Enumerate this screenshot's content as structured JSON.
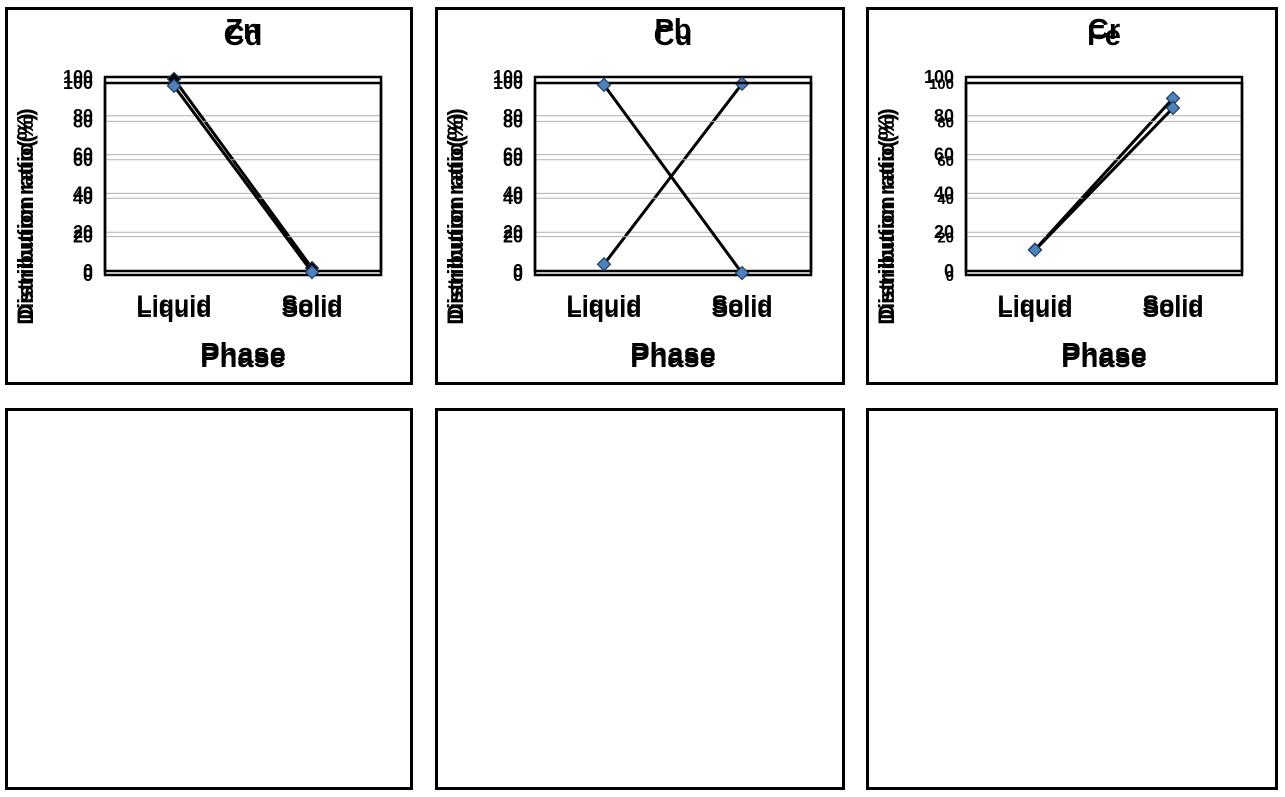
{
  "chart_data": [
    {
      "type": "line",
      "title": "Zn",
      "xlabel": "Phase",
      "ylabel": "Distribution ratio(%)",
      "categories": [
        "Liquid",
        "Solid"
      ],
      "values": [
        99,
        1.5
      ],
      "ylim": [
        0,
        100
      ],
      "yticks": [
        0,
        20,
        40,
        60,
        80,
        100
      ],
      "grid": true,
      "marker_color": "#000000"
    },
    {
      "type": "line",
      "title": "Pb",
      "xlabel": "Phase",
      "ylabel": "Distribution ratio(%)",
      "categories": [
        "Liquid",
        "Solid"
      ],
      "values": [
        3.5,
        96.5
      ],
      "ylim": [
        0,
        100
      ],
      "yticks": [
        0,
        20,
        40,
        60,
        80,
        100
      ],
      "grid": true,
      "marker_color": "#4f81bd"
    },
    {
      "type": "line",
      "title": "Cr",
      "xlabel": "Phase",
      "ylabel": "Distribution ratio(%)",
      "categories": [
        "Liquid",
        "Solid"
      ],
      "values": [
        11,
        89
      ],
      "ylim": [
        0,
        100
      ],
      "yticks": [
        0,
        20,
        40,
        60,
        80,
        100
      ],
      "grid": true,
      "marker_color": "#4f81bd"
    },
    {
      "type": "line",
      "title": "Cd",
      "xlabel": "Phase",
      "ylabel": "Distribution ratio(%)",
      "categories": [
        "Liquid",
        "Solid"
      ],
      "values": [
        98.5,
        1.5
      ],
      "ylim": [
        0,
        100
      ],
      "yticks": [
        0,
        20,
        40,
        60,
        80,
        100
      ],
      "grid": true,
      "marker_color": "#4f81bd"
    },
    {
      "type": "line",
      "title": "Cu",
      "xlabel": "Phase",
      "ylabel": "Distribution ratio(%)",
      "categories": [
        "Liquid",
        "Solid"
      ],
      "values": [
        99,
        1
      ],
      "ylim": [
        0,
        100
      ],
      "yticks": [
        0,
        20,
        40,
        60,
        80,
        100
      ],
      "grid": true,
      "marker_color": "#4f81bd"
    },
    {
      "type": "line",
      "title": "Fe",
      "xlabel": "Phase",
      "ylabel": "Distribution ratio(%)",
      "categories": [
        "Liquid",
        "Solid"
      ],
      "values": [
        13,
        87
      ],
      "ylim": [
        0,
        100
      ],
      "yticks": [
        0,
        20,
        40,
        60,
        80,
        100
      ],
      "grid": true,
      "marker_color": "#4f81bd"
    }
  ]
}
